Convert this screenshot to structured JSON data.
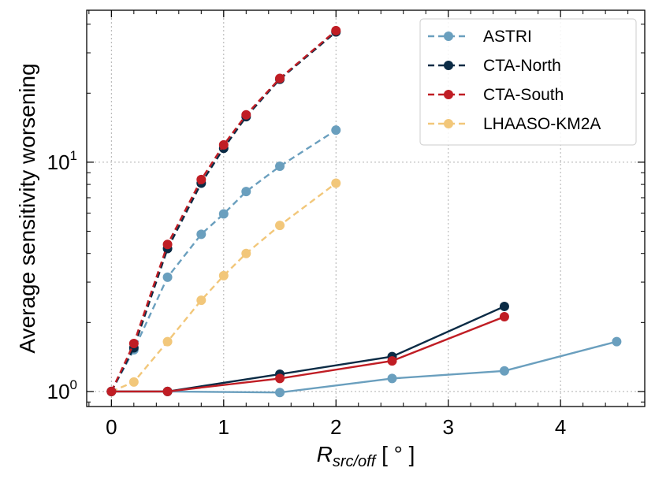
{
  "chart_data": {
    "type": "line",
    "xlabel_main": "R",
    "xlabel_sub": "src/off",
    "xlabel_unit": " [ ° ]",
    "ylabel": "Average sensitivity worsening",
    "xlim": [
      -0.22,
      4.75
    ],
    "ylim": [
      0.86,
      46
    ],
    "yscale": "log",
    "grid": true,
    "legend_position": "top-right",
    "xticks": [
      0,
      1,
      2,
      3,
      4
    ],
    "yticks": [
      {
        "value": 1,
        "base": "10",
        "exp": "0"
      },
      {
        "value": 10,
        "base": "10",
        "exp": "1"
      }
    ],
    "series": [
      {
        "name": "ASTRI",
        "color": "#6a9fbe",
        "style": "dashed",
        "x": [
          0,
          0.2,
          0.5,
          0.8,
          1.0,
          1.2,
          1.5,
          2.0
        ],
        "y": [
          1.0,
          1.52,
          3.15,
          4.85,
          5.95,
          7.45,
          9.6,
          13.8
        ]
      },
      {
        "name": "CTA-North",
        "color": "#0b2b45",
        "style": "dashed",
        "x": [
          0,
          0.2,
          0.5,
          0.8,
          1.0,
          1.2,
          1.5,
          2.0
        ],
        "y": [
          1.0,
          1.55,
          4.2,
          8.1,
          11.5,
          15.8,
          23.0,
          37.0
        ]
      },
      {
        "name": "CTA-South",
        "color": "#c01d24",
        "style": "dashed",
        "x": [
          0,
          0.2,
          0.5,
          0.8,
          1.0,
          1.2,
          1.5,
          2.0
        ],
        "y": [
          1.0,
          1.62,
          4.38,
          8.4,
          11.9,
          16.1,
          23.2,
          37.5
        ]
      },
      {
        "name": "LHAASO-KM2A",
        "color": "#f2c77a",
        "style": "dashed",
        "x": [
          0,
          0.2,
          0.5,
          0.8,
          1.0,
          1.2,
          1.5,
          2.0
        ],
        "y": [
          1.0,
          1.1,
          1.65,
          2.5,
          3.2,
          4.0,
          5.3,
          8.1
        ]
      },
      {
        "name": "",
        "color": "#6a9fbe",
        "style": "solid",
        "x": [
          0,
          0.5,
          1.5,
          2.5,
          3.5,
          4.5
        ],
        "y": [
          1.0,
          1.0,
          0.99,
          1.14,
          1.23,
          1.65
        ]
      },
      {
        "name": "",
        "color": "#0b2b45",
        "style": "solid",
        "x": [
          0,
          0.5,
          1.5,
          2.5,
          3.5
        ],
        "y": [
          1.0,
          1.0,
          1.19,
          1.42,
          2.35
        ]
      },
      {
        "name": "",
        "color": "#c01d24",
        "style": "solid",
        "x": [
          0,
          0.5,
          1.5,
          2.5,
          3.5
        ],
        "y": [
          1.0,
          1.0,
          1.14,
          1.36,
          2.12
        ]
      }
    ]
  }
}
